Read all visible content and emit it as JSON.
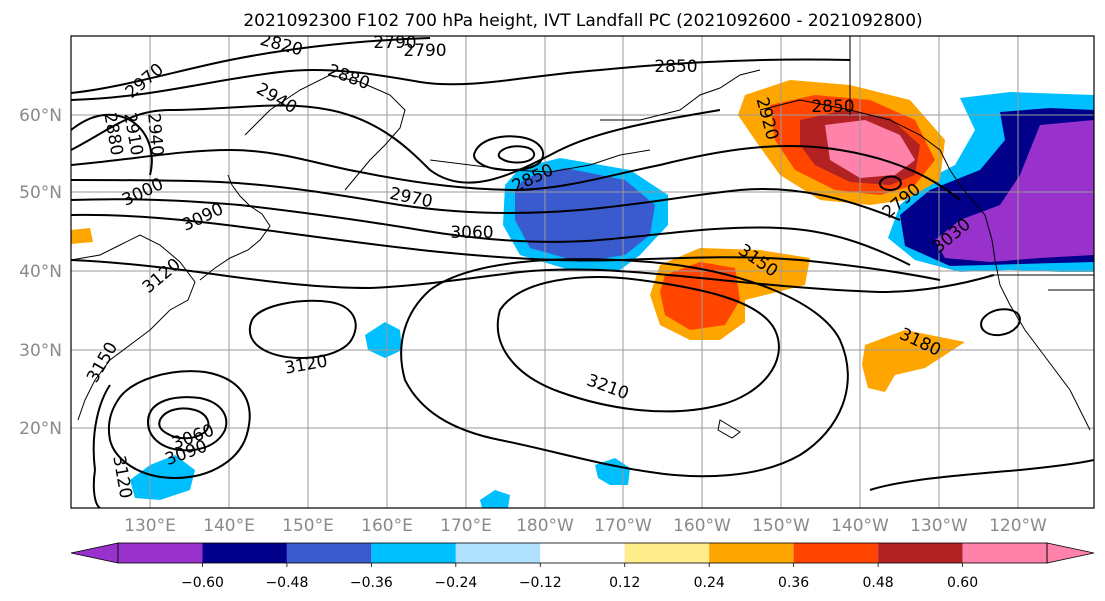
{
  "title": "2021092300 F102 700 hPa height, IVT Landfall PC (2021092600 - 2021092800)",
  "lat_labels": [
    "60°N",
    "50°N",
    "40°N",
    "30°N",
    "20°N"
  ],
  "lon_labels": [
    "130°E",
    "140°E",
    "150°E",
    "160°E",
    "170°E",
    "180°W",
    "170°W",
    "160°W",
    "150°W",
    "140°W",
    "130°W",
    "120°W"
  ],
  "contour_labels": {
    "c2970a": "2970",
    "c2880a": "2880",
    "c2910a": "2910",
    "c2940a": "2940",
    "c2820": "2820",
    "c2790a": "2790",
    "c2790b": "2790",
    "c2880b": "2880",
    "c2850a": "2850",
    "c2940b": "2940",
    "c3000": "3000",
    "c3090a": "3090",
    "c3120a": "3120",
    "c2850b": "2850",
    "c2970b": "2970",
    "c3060a": "3060",
    "c2920": "2920",
    "c2850c": "2850",
    "c2790c": "2790",
    "c3030": "3030",
    "c3150a": "3150",
    "c3120b": "3120",
    "c3210": "3210",
    "c3180": "3180",
    "c3150b": "3150",
    "c3060b": "3060",
    "c3090b": "3090",
    "c3120c": "3120"
  },
  "colorbar": {
    "colors": [
      "#9932cc",
      "#00008b",
      "#3a5bcd",
      "#00bfff",
      "#b0e2ff",
      "#ffffff",
      "#ffec8b",
      "#ffa500",
      "#ff4500",
      "#b22222",
      "#ff82ab"
    ],
    "ticks": [
      "−0.60",
      "−0.48",
      "−0.36",
      "−0.24",
      "−0.12",
      "0.12",
      "0.24",
      "0.36",
      "0.48",
      "0.60"
    ]
  }
}
